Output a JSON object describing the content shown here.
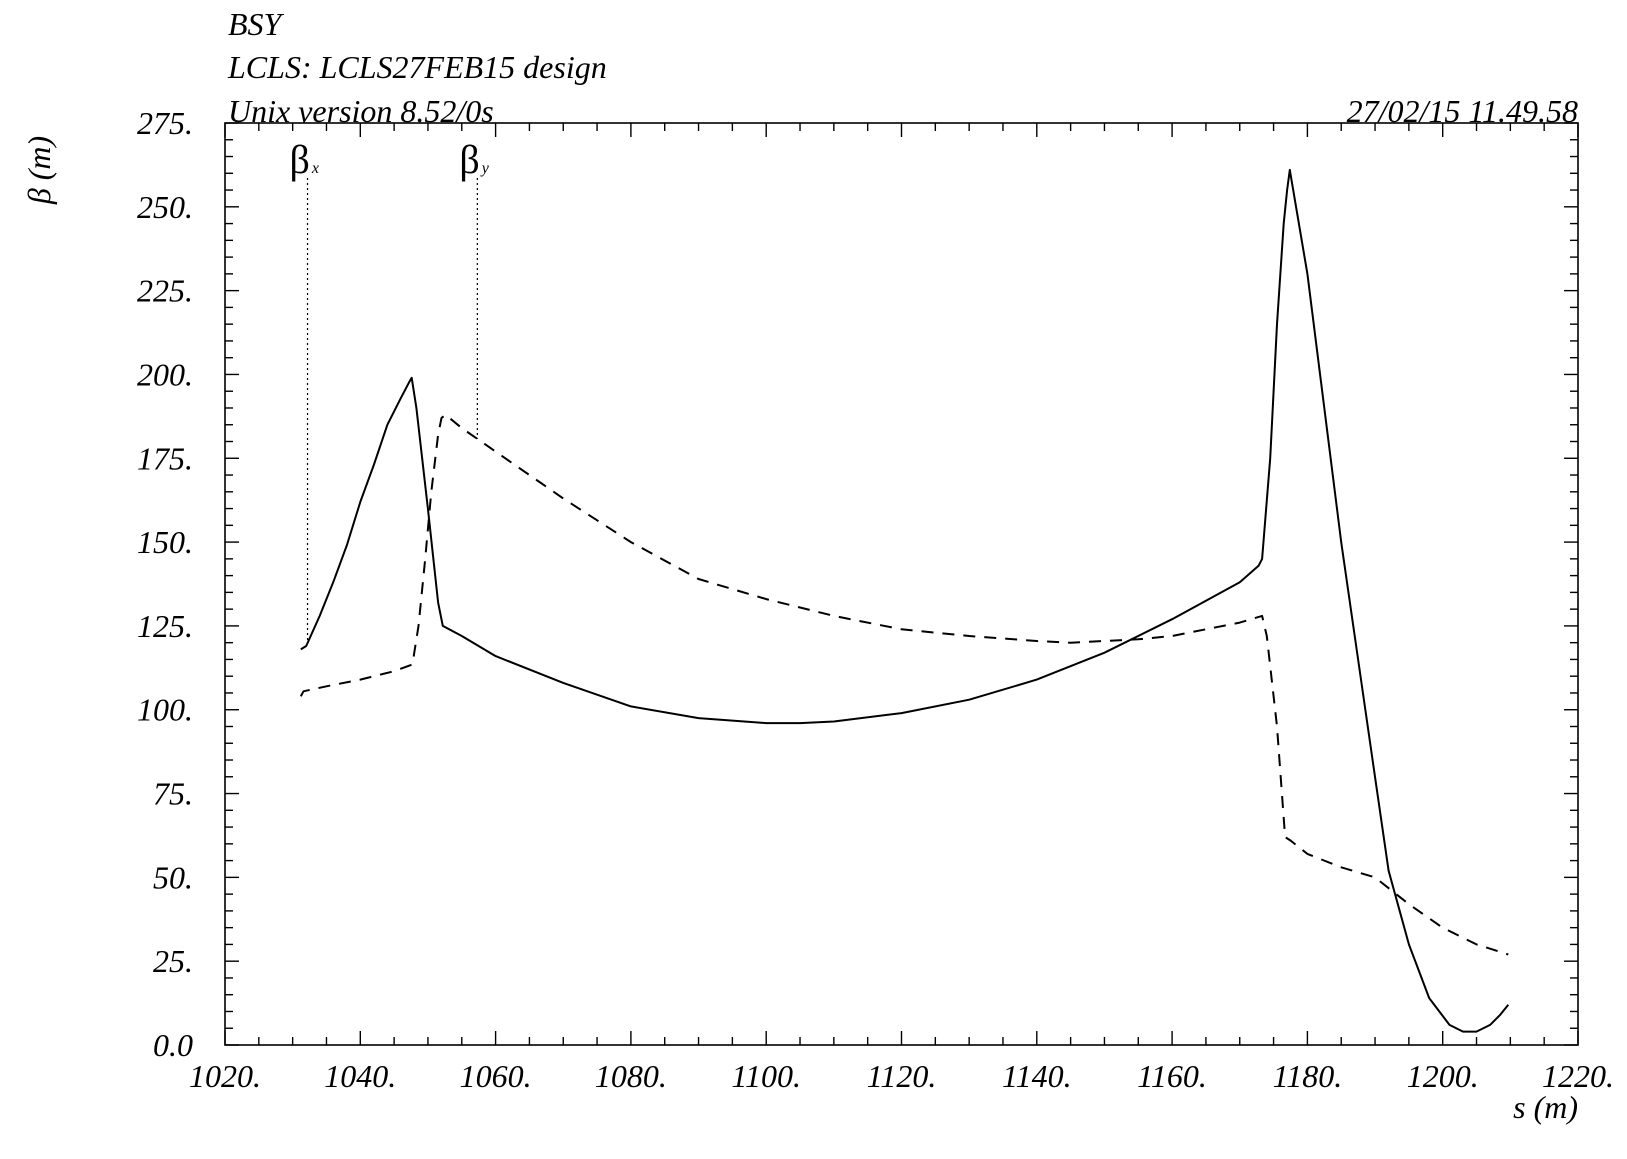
{
  "header": {
    "line1": "BSY",
    "line2": "LCLS: LCLS27FEB15 design",
    "line3": "Unix version 8.52/0s",
    "timestamp": "27/02/15  11.49.58"
  },
  "chart_data": {
    "type": "line",
    "xlabel": "s (m)",
    "ylabel": "β  (m)",
    "xlim": [
      1020,
      1220
    ],
    "ylim": [
      0,
      275
    ],
    "x_ticks": [
      1020,
      1040,
      1060,
      1080,
      1100,
      1120,
      1140,
      1160,
      1180,
      1200,
      1220
    ],
    "x_tick_labels": [
      "1020.",
      "1040.",
      "1060.",
      "1080.",
      "1100.",
      "1120.",
      "1140.",
      "1160.",
      "1180.",
      "1200.",
      "1220."
    ],
    "y_ticks": [
      0,
      25,
      50,
      75,
      100,
      125,
      150,
      175,
      200,
      225,
      250,
      275
    ],
    "y_tick_labels": [
      "0.0",
      "25.",
      "50.",
      "75.",
      "100.",
      "125.",
      "150.",
      "175.",
      "200.",
      "225.",
      "250.",
      "275."
    ],
    "grid": false,
    "series": [
      {
        "name": "βx",
        "name_main": "β",
        "name_sub": "x",
        "style": "solid",
        "label_x": 1032.2,
        "x": [
          1031.2,
          1032,
          1034,
          1036,
          1038,
          1040,
          1042,
          1044,
          1046,
          1047.3,
          1047.6,
          1048.3,
          1050,
          1051.5,
          1052.2,
          1055,
          1060,
          1070,
          1080,
          1090,
          1100,
          1105,
          1110,
          1120,
          1130,
          1140,
          1150,
          1160,
          1170,
          1172.8,
          1173.3,
          1174.5,
          1175.5,
          1176.5,
          1177.0,
          1177.4,
          1180,
          1185,
          1190,
          1192,
          1195,
          1198,
          1201,
          1203,
          1205,
          1207,
          1208.5,
          1209.7
        ],
        "y": [
          118,
          119,
          128,
          138,
          149,
          162,
          173,
          185,
          193,
          198,
          199,
          190,
          160,
          132,
          125,
          122,
          116,
          108,
          101,
          97.5,
          96,
          96,
          96.5,
          99,
          103,
          109,
          117,
          127,
          138,
          143,
          145,
          175,
          215,
          245,
          255,
          261,
          230,
          150,
          80,
          52,
          30,
          14,
          6,
          4,
          4,
          6,
          9,
          12
        ]
      },
      {
        "name": "βy",
        "name_main": "β",
        "name_sub": "y",
        "style": "dashed",
        "label_x": 1057.3,
        "x": [
          1031.2,
          1031.6,
          1035,
          1040,
          1045,
          1047.7,
          1048.6,
          1049.6,
          1050.5,
          1051.5,
          1052.0,
          1052.6,
          1055,
          1060,
          1070,
          1080,
          1090,
          1100,
          1110,
          1120,
          1130,
          1140,
          1145,
          1150,
          1155,
          1160,
          1165,
          1170,
          1173.3,
          1174.0,
          1175.5,
          1176.7,
          1177.5,
          1180,
          1185,
          1190,
          1195,
          1200,
          1205,
          1209.7
        ],
        "y": [
          104,
          105.5,
          107,
          109,
          111.5,
          113.5,
          125,
          145,
          165,
          182,
          187,
          188,
          184,
          177,
          163,
          150,
          139,
          133,
          128,
          124,
          122,
          120.5,
          120,
          120.5,
          121,
          122,
          124,
          126,
          128,
          122,
          95,
          62,
          61,
          57,
          53,
          50,
          42,
          35,
          30,
          27
        ]
      }
    ]
  }
}
